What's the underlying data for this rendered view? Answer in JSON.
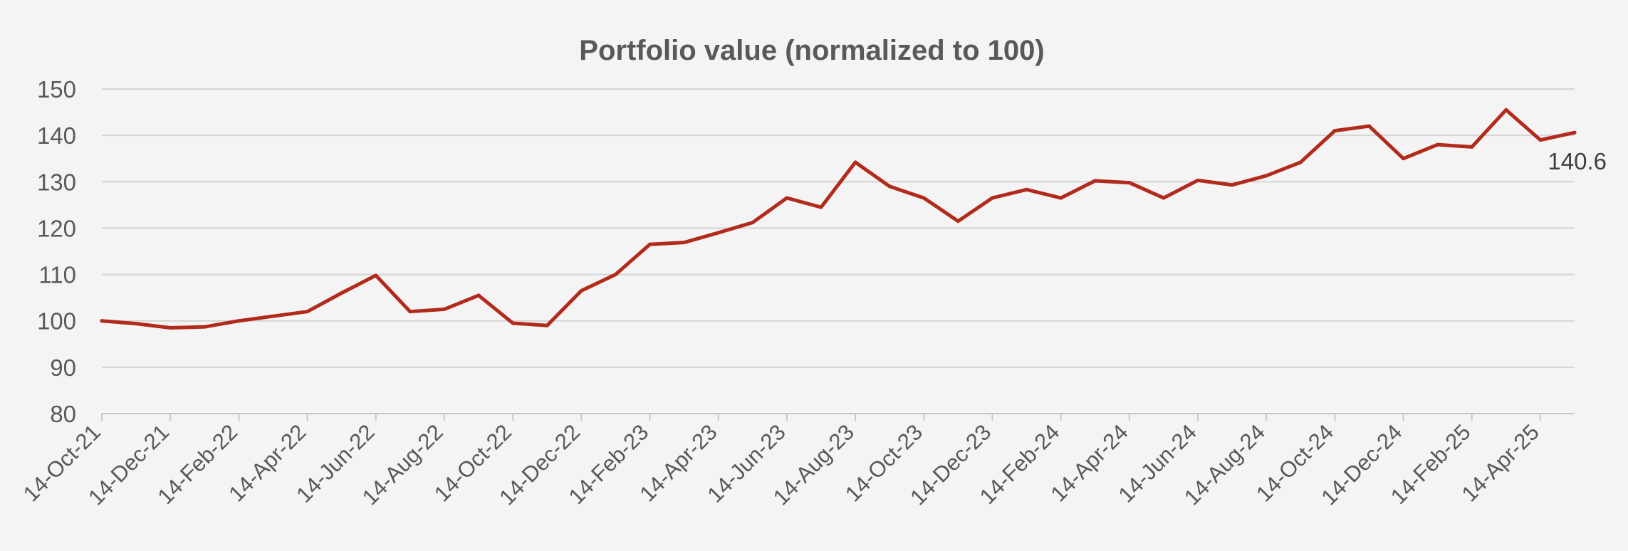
{
  "chart_data": {
    "type": "line",
    "title": "Portfolio value (normalized to 100)",
    "xlabel": "",
    "ylabel": "",
    "ylim": [
      80,
      150
    ],
    "yticks": [
      80,
      90,
      100,
      110,
      120,
      130,
      140,
      150
    ],
    "grid": true,
    "x_tick_labels": [
      "14-Oct-21",
      "14-Dec-21",
      "14-Feb-22",
      "14-Apr-22",
      "14-Jun-22",
      "14-Aug-22",
      "14-Oct-22",
      "14-Dec-22",
      "14-Feb-23",
      "14-Apr-23",
      "14-Jun-23",
      "14-Aug-23",
      "14-Oct-23",
      "14-Dec-23",
      "14-Feb-24",
      "14-Apr-24",
      "14-Jun-24",
      "14-Aug-24",
      "14-Oct-24",
      "14-Dec-24",
      "14-Feb-25",
      "14-Apr-25"
    ],
    "x_range_months": [
      0,
      43
    ],
    "series": [
      {
        "name": "Portfolio value",
        "color": "#b22a1c",
        "x_months": [
          0,
          1,
          2,
          3,
          4,
          5,
          6,
          7,
          8,
          9,
          10,
          11,
          12,
          13,
          14,
          15,
          16,
          17,
          18,
          19,
          20,
          21,
          22,
          23,
          24,
          25,
          26,
          27,
          28,
          29,
          30,
          31,
          32,
          33,
          34,
          35,
          36,
          37,
          38,
          39,
          40,
          41,
          42,
          43
        ],
        "values": [
          100.0,
          99.4,
          98.5,
          98.7,
          100.0,
          101.0,
          102.0,
          106.0,
          109.8,
          102.0,
          102.5,
          105.5,
          99.5,
          99.0,
          106.5,
          110.0,
          116.5,
          116.9,
          119.0,
          121.2,
          126.5,
          124.5,
          134.2,
          129.0,
          126.5,
          121.5,
          126.5,
          128.3,
          126.5,
          130.2,
          129.8,
          126.5,
          130.3,
          129.3,
          131.3,
          134.2,
          141.0,
          142.0,
          135.0,
          138.0,
          137.5,
          145.5,
          139.0,
          140.6
        ]
      }
    ],
    "end_label": "140.6"
  }
}
